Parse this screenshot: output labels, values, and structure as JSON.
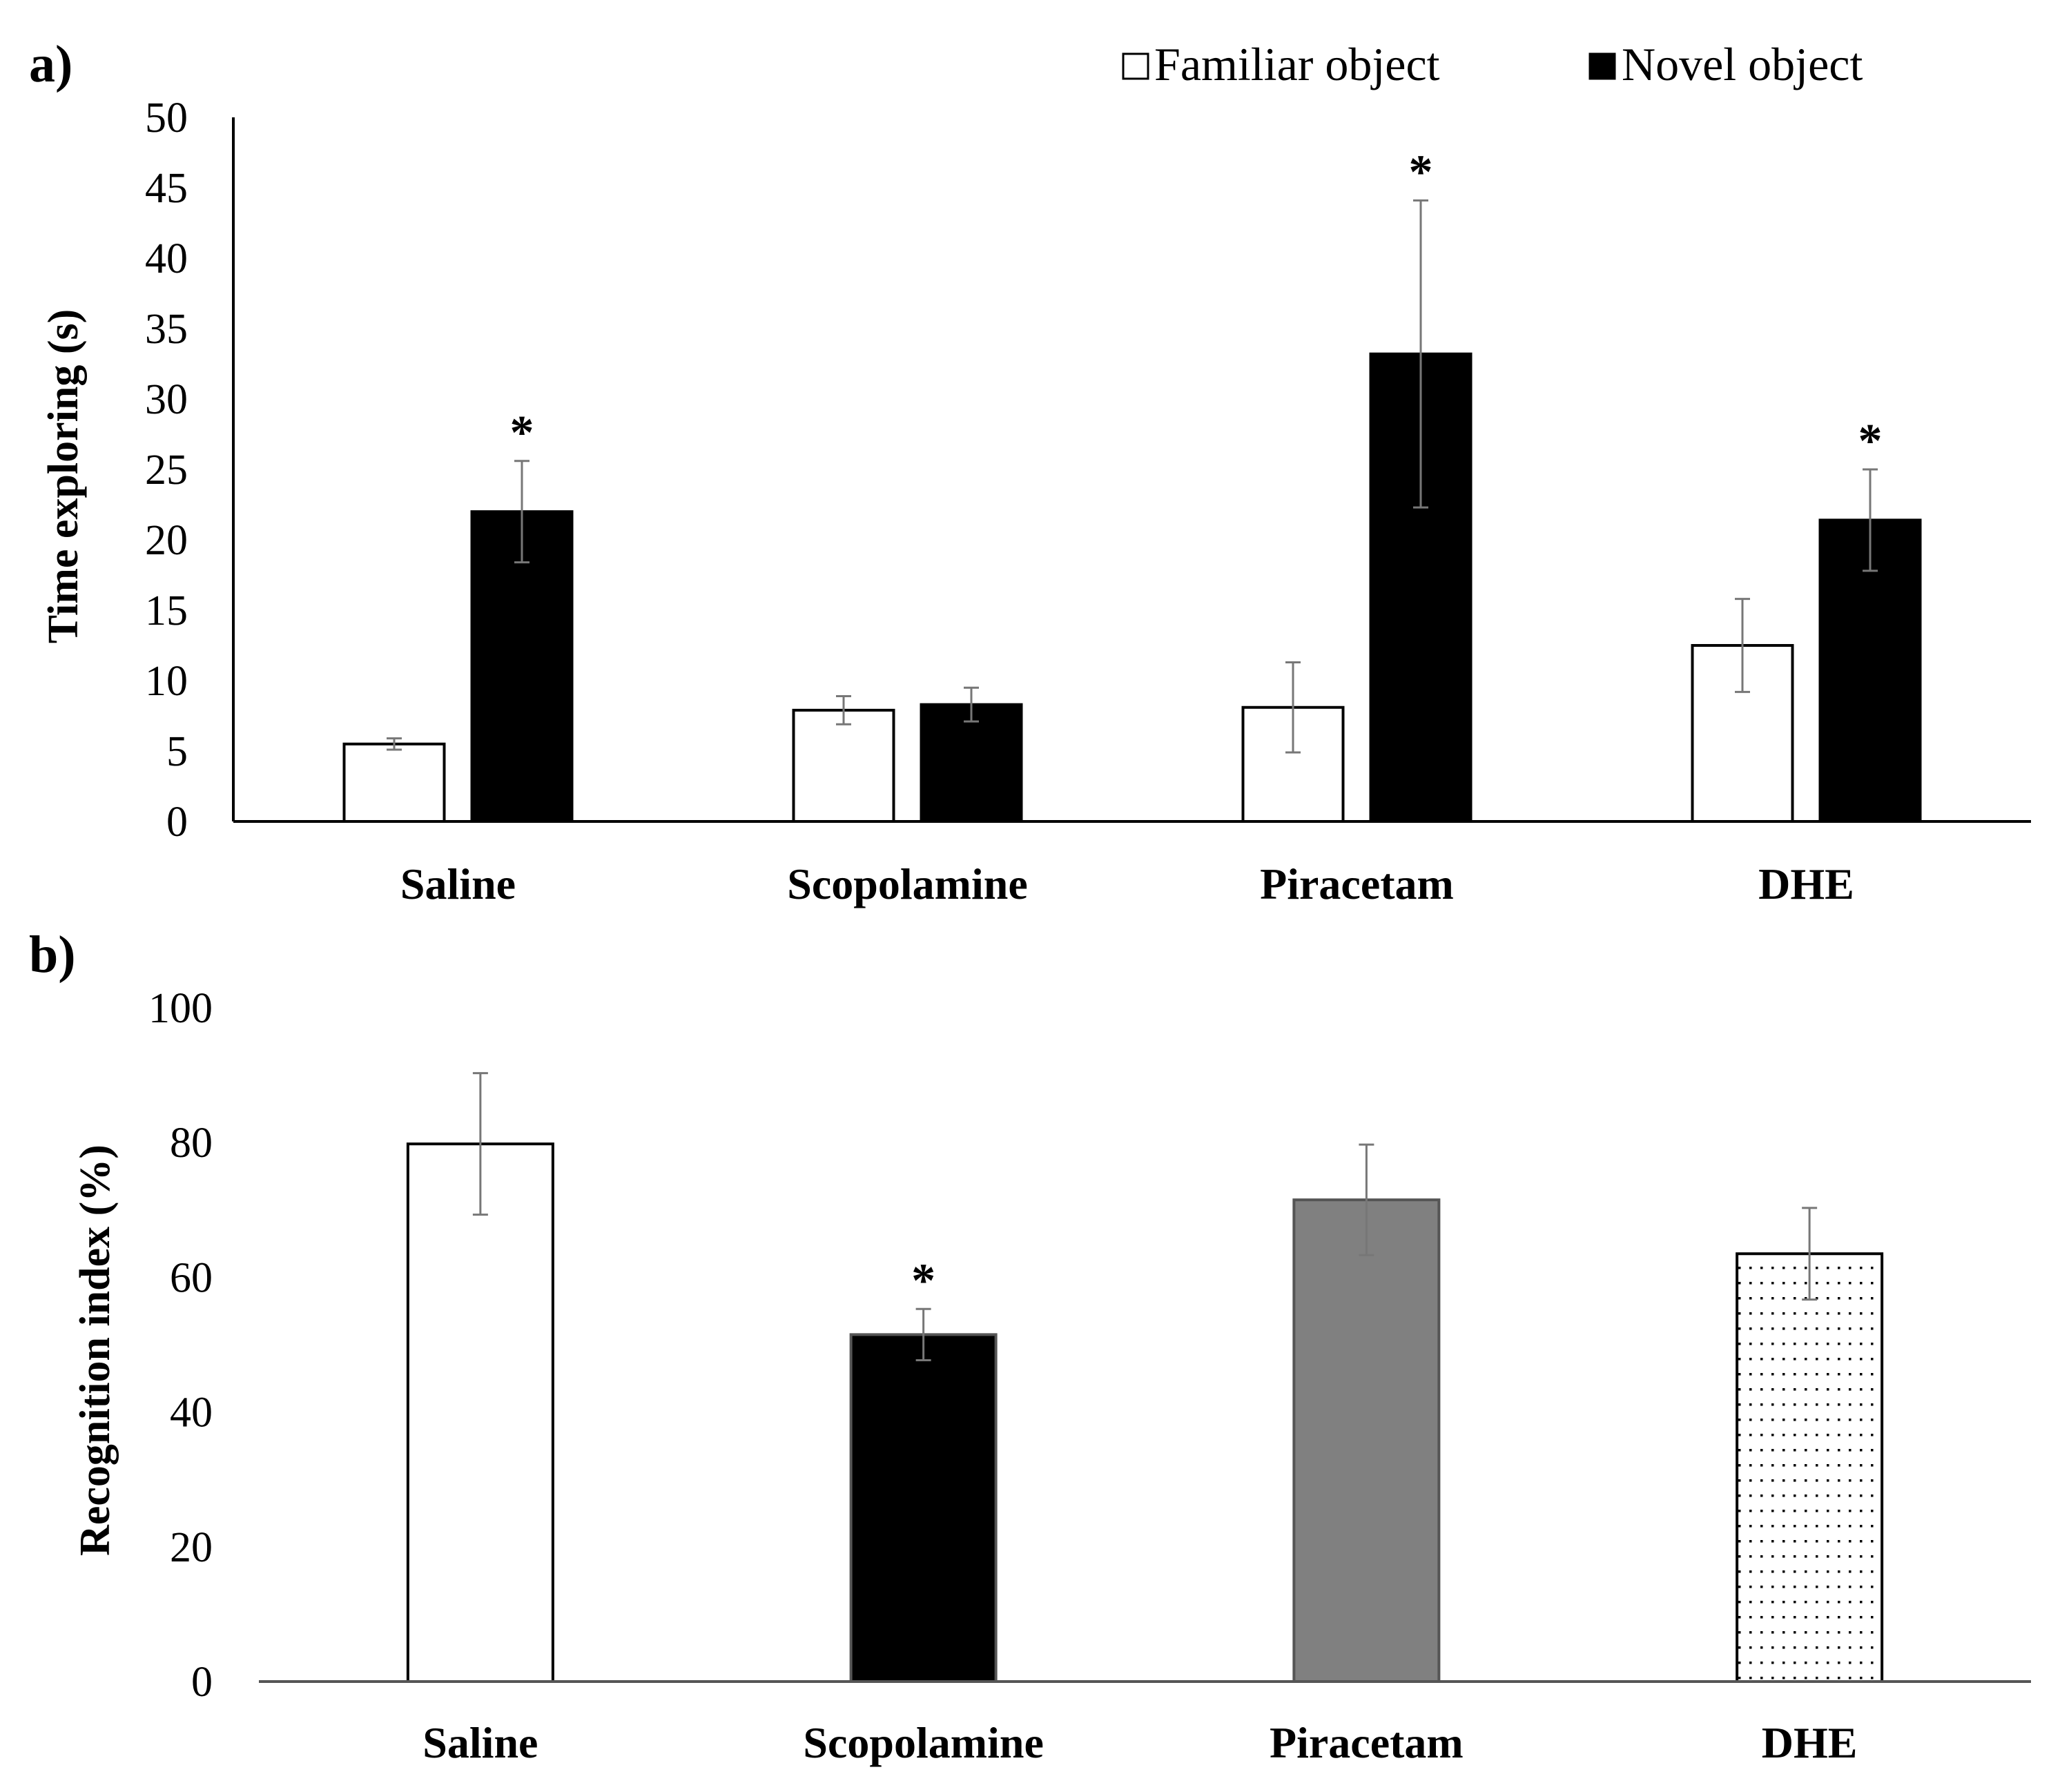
{
  "panel_a_label": "a)",
  "panel_b_label": "b)",
  "chart_data": [
    {
      "panel": "a)",
      "type": "bar",
      "title": "",
      "xlabel": "",
      "ylabel": "Time exploring (s)",
      "ylim": [
        0,
        50
      ],
      "yticks": [
        "0",
        "5",
        "10",
        "15",
        "20",
        "25",
        "30",
        "35",
        "40",
        "45",
        "50"
      ],
      "categories": [
        "Saline",
        "Scopolamine",
        "Piracetam",
        "DHE"
      ],
      "legend": {
        "position": "top-right",
        "entries": [
          "Familiar object",
          "Novel object"
        ]
      },
      "series": [
        {
          "name": "Familiar object",
          "color": "#ffffff",
          "values": [
            5.5,
            7.9,
            8.1,
            12.5
          ],
          "errors": [
            0.4,
            1.0,
            3.2,
            3.3
          ],
          "markers": [
            "",
            "",
            "",
            ""
          ]
        },
        {
          "name": "Novel object",
          "color": "#000000",
          "values": [
            22.0,
            8.3,
            33.2,
            21.4
          ],
          "errors": [
            3.6,
            1.2,
            10.9,
            3.6
          ],
          "markers": [
            "*",
            "",
            "*",
            "*"
          ]
        }
      ]
    },
    {
      "panel": "b)",
      "type": "bar",
      "title": "",
      "xlabel": "",
      "ylabel": "Recognition index (%)",
      "ylim": [
        0,
        100
      ],
      "yticks": [
        "0",
        "20",
        "40",
        "60",
        "80",
        "100"
      ],
      "categories": [
        "Saline",
        "Scopolamine",
        "Piracetam",
        "DHE"
      ],
      "values": [
        79.8,
        51.5,
        71.5,
        63.5
      ],
      "errors": [
        10.5,
        3.8,
        8.2,
        6.8
      ],
      "fills": [
        "#ffffff",
        "#000000",
        "#808080",
        "dots"
      ],
      "markers": [
        "",
        "*",
        "",
        ""
      ]
    }
  ]
}
